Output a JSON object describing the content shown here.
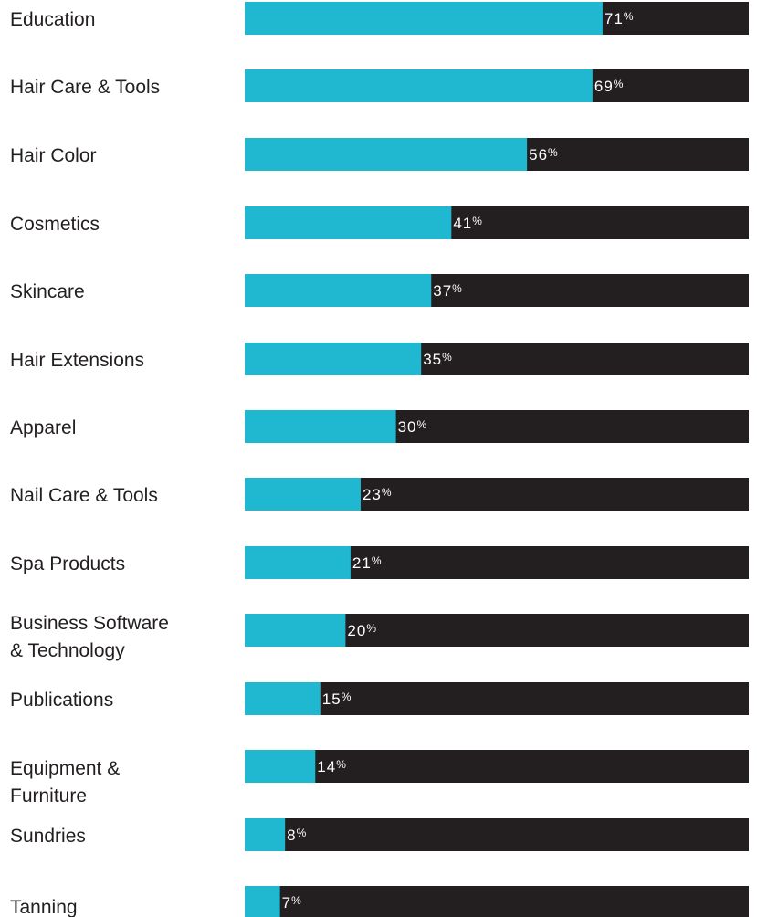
{
  "chart_data": {
    "type": "bar",
    "orientation": "horizontal",
    "stacked_to": 100,
    "categories": [
      "Education",
      "Hair Care & Tools",
      "Hair Color",
      "Cosmetics",
      "Skincare",
      "Hair Extensions",
      "Apparel",
      "Nail Care & Tools",
      "Spa Products",
      "Business Software & Technology",
      "Publications",
      "Equipment & Furniture",
      "Sundries",
      "Tanning"
    ],
    "values": [
      71,
      69,
      56,
      41,
      37,
      35,
      30,
      23,
      21,
      20,
      15,
      14,
      8,
      7
    ],
    "value_labels": [
      "71%",
      "69%",
      "56%",
      "41%",
      "37%",
      "35%",
      "30%",
      "23%",
      "21%",
      "20%",
      "15%",
      "14%",
      "8%",
      "7%"
    ],
    "xlim": [
      0,
      100
    ],
    "colors": {
      "value": "#1fb8d0",
      "remainder": "#231f20",
      "label_text": "#ffffff",
      "category_text": "#231f20"
    },
    "grid": false,
    "legend": "none"
  }
}
